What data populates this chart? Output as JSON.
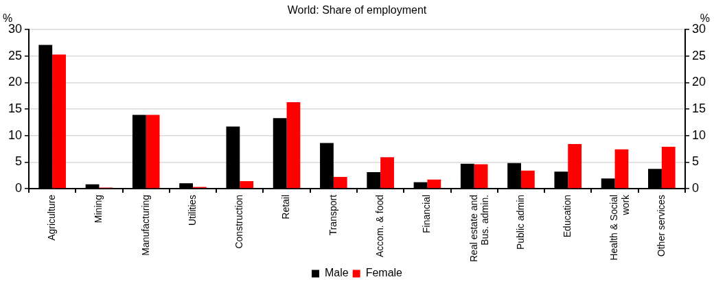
{
  "chart_data": {
    "type": "bar",
    "title": "World: Share of employment",
    "ylabel": "%",
    "y2label": "%",
    "categories": [
      "Agriculture",
      "Mining",
      "Manufacturing",
      "Utilities",
      "Construction",
      "Retail",
      "Transport",
      "Accom. & food",
      "Financial",
      "Real estate and Bus. admin.",
      "Public admin",
      "Education",
      "Health & Social work",
      "Other services"
    ],
    "series": [
      {
        "name": "Male",
        "color": "#000000",
        "values": [
          27.1,
          0.8,
          13.9,
          1.0,
          11.7,
          13.3,
          8.6,
          3.1,
          1.2,
          4.7,
          4.8,
          3.2,
          1.9,
          3.7
        ]
      },
      {
        "name": "Female",
        "color": "#ff0000",
        "values": [
          25.3,
          0.2,
          13.9,
          0.3,
          1.4,
          16.3,
          2.2,
          5.9,
          1.7,
          4.6,
          3.4,
          8.4,
          7.4,
          7.9
        ]
      }
    ],
    "ylim": [
      0,
      30
    ],
    "yticks": [
      0,
      5,
      10,
      15,
      20,
      25,
      30
    ],
    "y2lim": [
      0,
      30
    ],
    "y2ticks": [
      0,
      5,
      10,
      15,
      20,
      25,
      30
    ],
    "grid": "y",
    "legend": "bottom"
  }
}
